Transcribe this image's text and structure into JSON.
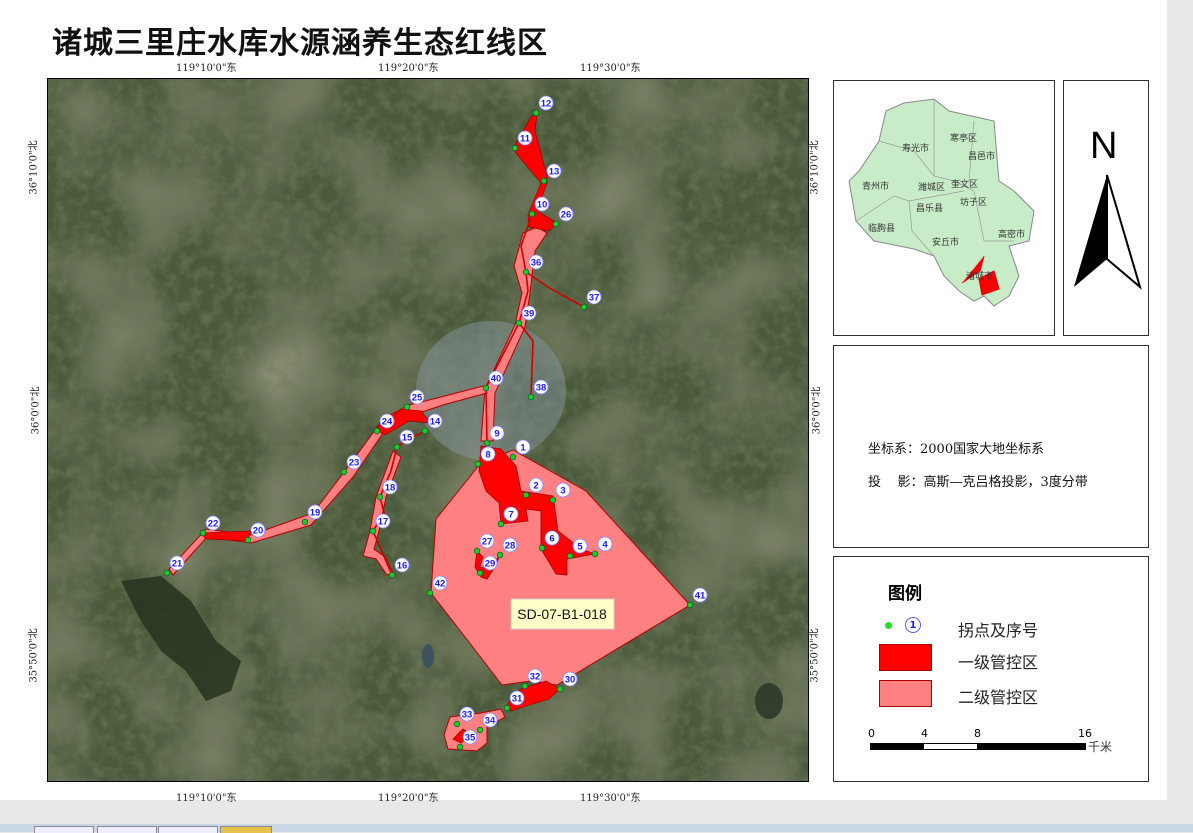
{
  "title": "诸城三里庄水库水源涵养生态红线区",
  "graticule": {
    "longitudes": [
      "119°10'0\"东",
      "119°20'0\"东",
      "119°30'0\"东"
    ],
    "latitudes": [
      "36°10'0\"北",
      "36°0'0\"北",
      "35°50'0\"北"
    ]
  },
  "map": {
    "zone_label": "SD-07-B1-018",
    "points": [
      "1",
      "2",
      "3",
      "4",
      "5",
      "6",
      "7",
      "8",
      "9",
      "10",
      "11",
      "12",
      "13",
      "14",
      "15",
      "16",
      "17",
      "18",
      "19",
      "20",
      "21",
      "22",
      "23",
      "24",
      "25",
      "26",
      "27",
      "28",
      "29",
      "30",
      "31",
      "32",
      "33",
      "34",
      "35",
      "36",
      "37",
      "38",
      "39",
      "40",
      "41",
      "42"
    ]
  },
  "inset": {
    "regions": [
      "寿光市",
      "寒亭区",
      "昌邑市",
      "青州市",
      "潍城区",
      "奎文区",
      "坊子区",
      "昌乐县",
      "临朐县",
      "安丘市",
      "高密市",
      "诸城市"
    ]
  },
  "north_arrow": {
    "label": "N"
  },
  "info": {
    "crs": "坐标系：2000国家大地坐标系",
    "projection": "投    影：高斯—克吕格投影，3度分带"
  },
  "legend": {
    "title": "图例",
    "items": [
      {
        "label": "拐点及序号",
        "symbol_text": "1"
      },
      {
        "label": "一级管控区"
      },
      {
        "label": "二级管控区"
      }
    ],
    "scale": {
      "ticks": [
        "0",
        "4",
        "8",
        "16"
      ],
      "unit": "千米"
    }
  },
  "colors": {
    "level1": "#ff0000",
    "level2": "#ff8080",
    "point": "#22cc22",
    "point_label": "#1a1aff"
  }
}
